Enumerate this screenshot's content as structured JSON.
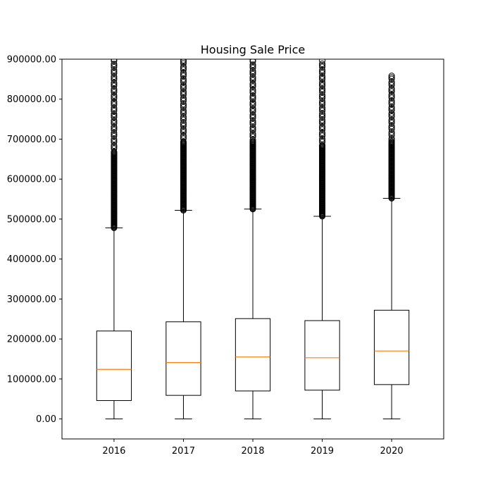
{
  "chart_data": {
    "type": "box",
    "title": "Housing Sale Price",
    "xlabel": "",
    "ylabel": "",
    "ylim": [
      -50000,
      900000
    ],
    "yticks": [
      0,
      100000,
      200000,
      300000,
      400000,
      500000,
      600000,
      700000,
      800000,
      900000
    ],
    "ytick_labels": [
      "0.00",
      "100000.00",
      "200000.00",
      "300000.00",
      "400000.00",
      "500000.00",
      "600000.00",
      "700000.00",
      "800000.00",
      "900000.00"
    ],
    "categories": [
      "2016",
      "2017",
      "2018",
      "2019",
      "2020"
    ],
    "grid": false,
    "boxes": [
      {
        "category": "2016",
        "whisker_low": 0,
        "q1": 46000,
        "median": 124000,
        "q3": 220000,
        "whisker_high": 478000,
        "outlier_min": 478000,
        "outlier_max": 900000
      },
      {
        "category": "2017",
        "whisker_low": 0,
        "q1": 59000,
        "median": 141000,
        "q3": 243000,
        "whisker_high": 522000,
        "outlier_min": 522000,
        "outlier_max": 900000
      },
      {
        "category": "2018",
        "whisker_low": 0,
        "q1": 70000,
        "median": 155000,
        "q3": 251000,
        "whisker_high": 525000,
        "outlier_min": 525000,
        "outlier_max": 900000
      },
      {
        "category": "2019",
        "whisker_low": 0,
        "q1": 72000,
        "median": 153000,
        "q3": 246000,
        "whisker_high": 507000,
        "outlier_min": 507000,
        "outlier_max": 900000
      },
      {
        "category": "2020",
        "whisker_low": 0,
        "q1": 86000,
        "median": 170000,
        "q3": 272000,
        "whisker_high": 552000,
        "outlier_min": 552000,
        "outlier_max": 866000
      }
    ],
    "colors": {
      "box": "#000000",
      "median": "#ff7f0e",
      "outlier": "#000000"
    }
  }
}
